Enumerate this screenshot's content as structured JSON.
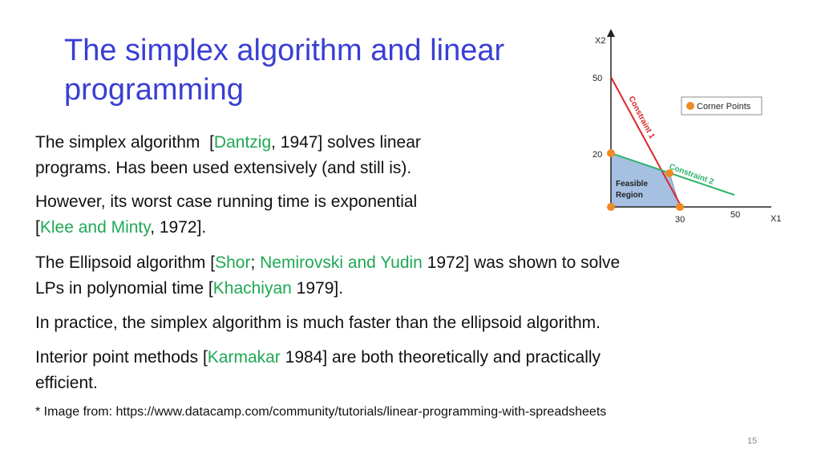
{
  "title": {
    "lines": [
      "The simplex algorithm and linear",
      "programming"
    ]
  },
  "paragraphs": [
    {
      "lines": [
        [
          {
            "text": "The simplex algorithm  ["
          },
          {
            "cite": "Dantzig"
          },
          {
            "text": ", 1947] solves linear"
          }
        ],
        [
          {
            "text": "programs. Has been used extensively (and still is)."
          }
        ]
      ]
    },
    {
      "lines": [
        [
          {
            "text": "However, its worst case running time is exponential"
          }
        ],
        [
          {
            "text": "["
          },
          {
            "cite": "Klee and Minty"
          },
          {
            "text": ", 1972]."
          }
        ]
      ]
    },
    {
      "lines": [
        [
          {
            "text": "The Ellipsoid algorithm ["
          },
          {
            "cite": "Shor"
          },
          {
            "text": "; "
          },
          {
            "cite": "Nemirovski and Yudin"
          },
          {
            "text": " 1972] was shown to solve"
          }
        ],
        [
          {
            "text": "LPs in polynomial time ["
          },
          {
            "cite": "Khachiyan"
          },
          {
            "text": " 1979]."
          }
        ]
      ]
    },
    {
      "lines": [
        [
          {
            "text": "In practice, the simplex algorithm is much faster than the ellipsoid algorithm."
          }
        ]
      ]
    },
    {
      "lines": [
        [
          {
            "text": "Interior point methods ["
          },
          {
            "cite": "Karmakar"
          },
          {
            "text": " 1984] are both theoretically and practically"
          }
        ],
        [
          {
            "text": "efficient."
          }
        ]
      ]
    }
  ],
  "footnote": "* Image from: https://www.datacamp.com/community/tutorials/linear-programming-with-spreadsheets",
  "page_number": "15",
  "figure": {
    "y_axis_label": "X2",
    "x_axis_label": "X1",
    "y_tick_labels": [
      "50",
      "20"
    ],
    "x_tick_labels": [
      "30",
      "50"
    ],
    "constraint_labels": [
      "Constraint 1",
      "Constraint 2"
    ],
    "region_label": [
      "Feasible",
      "Region"
    ],
    "legend": "Corner Points"
  }
}
